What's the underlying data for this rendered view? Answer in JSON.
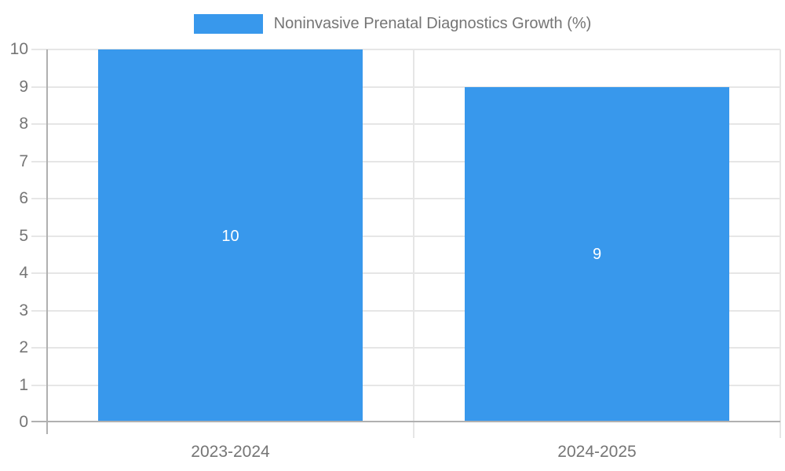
{
  "chart_data": {
    "type": "bar",
    "title": "Noninvasive Prenatal Diagnostics Growth (%)",
    "categories": [
      "2023-2024",
      "2024-2025"
    ],
    "series": [
      {
        "name": "Noninvasive Prenatal Diagnostics Growth (%)",
        "values": [
          10,
          9
        ]
      }
    ],
    "value_labels": [
      "10",
      "9"
    ],
    "xlabel": "",
    "ylabel": "",
    "ylim": [
      0,
      10
    ],
    "yticks": [
      0,
      1,
      2,
      3,
      4,
      5,
      6,
      7,
      8,
      9,
      10
    ],
    "grid": true,
    "legend_position": "top"
  },
  "colors": {
    "bar": "#3898ec",
    "axis_text": "#757575",
    "gridline": "#e6e6e6",
    "axis_line": "#b0b0b0",
    "bar_label_text": "#ffffff",
    "background": "#ffffff"
  }
}
